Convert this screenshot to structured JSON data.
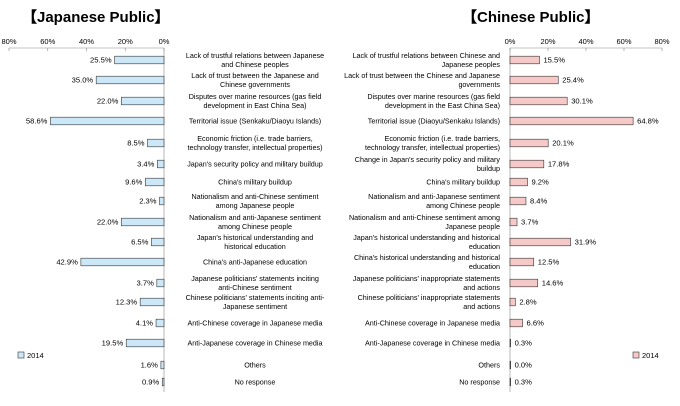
{
  "chart_data": [
    {
      "type": "bar",
      "orientation": "horizontal",
      "title": "【Japanese Public】",
      "xlim": [
        0,
        80
      ],
      "x_ticks": [
        "80%",
        "60%",
        "40%",
        "20%",
        "0%"
      ],
      "direction": "right-to-left",
      "categories": [
        [
          "Lack of trustful relations between Japanese",
          "and Chinese peoples"
        ],
        [
          "Lack of trust between the Japanese and",
          "Chinese governments"
        ],
        [
          "Disputes over marine resources (gas field",
          "development in East China Sea)"
        ],
        [
          "Territorial issue (Senkaku/Diaoyu Islands)"
        ],
        [
          "Economic friction (i.e. trade barriers,",
          "technology transfer, intellectual properties)"
        ],
        [
          "Japan's security policy and military buildup"
        ],
        [
          "China's military buildup"
        ],
        [
          "Nationalism and anti-Chinese sentiment",
          "among Japanese people"
        ],
        [
          "Nationalism and anti-Japanese sentiment",
          "among Chinese people"
        ],
        [
          "Japan's historical understanding and",
          "historical education"
        ],
        [
          "China's anti-Japanese education"
        ],
        [
          "Japanese politicians' statements inciting",
          "anti-Chinese sentiment"
        ],
        [
          "Chinese politicians' statements inciting anti-",
          "Japanese sentiment"
        ],
        [
          "Anti-Chinese coverage in Japanese media"
        ],
        [
          "Anti-Japanese coverage in Chinese media"
        ],
        [
          "Others"
        ],
        [
          "No response"
        ]
      ],
      "series": [
        {
          "name": "2014",
          "color": "#cce8f8",
          "values": [
            25.5,
            35.0,
            22.0,
            58.6,
            8.5,
            3.4,
            9.6,
            2.3,
            22.0,
            6.5,
            42.9,
            3.7,
            12.3,
            4.1,
            19.5,
            1.6,
            0.9
          ],
          "labels": [
            "25.5%",
            "35.0%",
            "22.0%",
            "58.6%",
            "8.5%",
            "3.4%",
            "9.6%",
            "2.3%",
            "22.0%",
            "6.5%",
            "42.9%",
            "3.7%",
            "12.3%",
            "4.1%",
            "19.5%",
            "1.6%",
            "0.9%"
          ]
        }
      ],
      "legend": "bottom-left"
    },
    {
      "type": "bar",
      "orientation": "horizontal",
      "title": "【Chinese Public】",
      "xlim": [
        0,
        80
      ],
      "x_ticks": [
        "0%",
        "20%",
        "40%",
        "60%",
        "80%"
      ],
      "direction": "left-to-right",
      "categories": [
        [
          "Lack of trustful relations between Chinese and",
          "Japanese peoples"
        ],
        [
          "Lack of trust between the Chinese and Japanese",
          "governments"
        ],
        [
          "Disputes over marine resources (gas field",
          "development in the East China Sea)"
        ],
        [
          "Territorial issue (Diaoyu/Senkaku Islands)"
        ],
        [
          "Economic friction (i.e. trade barriers,",
          "technology transfer, intellectual properties)"
        ],
        [
          "Change in Japan's security policy and military",
          "buildup"
        ],
        [
          "China's military buildup"
        ],
        [
          "Nationalism and anti-Japanese sentiment",
          "among Chinese people"
        ],
        [
          "Nationalism and anti-Chinese sentiment among",
          "Japanese people"
        ],
        [
          "Japan's historical understanding and historical",
          "education"
        ],
        [
          "China's historical understanding and historical",
          "education"
        ],
        [
          "Japanese politicians' inappropriate statements",
          "and actions"
        ],
        [
          "Chinese politicians' inappropriate statements",
          "and actions"
        ],
        [
          "Anti-Chinese coverage in Japanese media"
        ],
        [
          "Anti-Japanese coverage in Chinese media"
        ],
        [
          "Others"
        ],
        [
          "No response"
        ]
      ],
      "series": [
        {
          "name": "2014",
          "color": "#f6c9c9",
          "values": [
            15.5,
            25.4,
            30.1,
            64.8,
            20.1,
            17.8,
            9.2,
            8.4,
            3.7,
            31.9,
            12.5,
            14.6,
            2.8,
            6.6,
            0.3,
            0.0,
            0.3
          ],
          "labels": [
            "15.5%",
            "25.4%",
            "30.1%",
            "64.8%",
            "20.1%",
            "17.8%",
            "9.2%",
            "8.4%",
            "3.7%",
            "31.9%",
            "12.5%",
            "14.6%",
            "2.8%",
            "6.6%",
            "0.3%",
            "0.0%",
            "0.3%"
          ]
        }
      ],
      "legend": "bottom-right"
    }
  ]
}
